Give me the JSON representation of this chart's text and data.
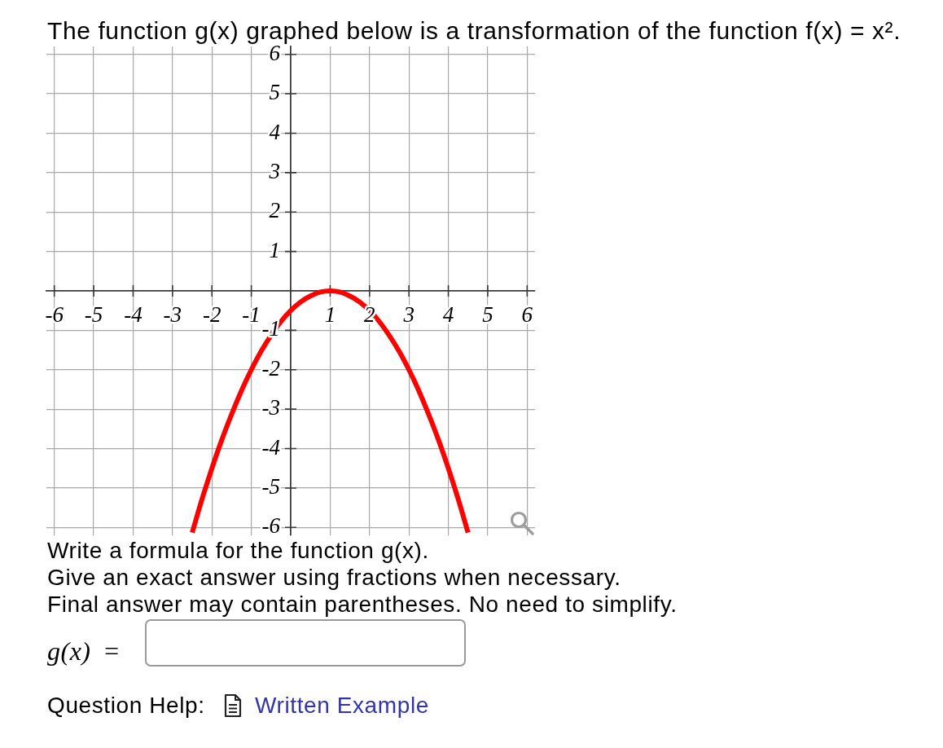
{
  "chart_data": {
    "type": "line",
    "title": "The function g(x) graphed below is a transformation of the function f(x) = x².",
    "x": [
      -2.5,
      -2.25,
      -2,
      -1.75,
      -1.5,
      -1.25,
      -1,
      -0.75,
      -0.5,
      -0.25,
      0,
      0.25,
      0.5,
      0.75,
      1,
      1.25,
      1.5,
      1.75,
      2,
      2.25,
      2.5,
      2.75,
      3,
      3.25,
      3.5,
      3.75,
      4,
      4.25,
      4.5
    ],
    "series": [
      {
        "color": "#ff0000",
        "values": [
          -6.13,
          -5.28,
          -4.5,
          -3.78,
          -3.13,
          -2.53,
          -2,
          -1.53,
          -1.13,
          -0.78,
          -0.5,
          -0.28,
          -0.13,
          -0.03,
          0,
          -0.03,
          -0.13,
          -0.28,
          -0.5,
          -0.78,
          -1.13,
          -1.53,
          -2,
          -2.53,
          -3.13,
          -3.78,
          -4.5,
          -5.28,
          -6.13
        ]
      }
    ],
    "xlim": [
      -6.2,
      6.2
    ],
    "ylim": [
      -6.2,
      6.2
    ],
    "xticks": [
      -6,
      -5,
      -4,
      -3,
      -2,
      -1,
      1,
      2,
      3,
      4,
      5,
      6
    ],
    "yticks": [
      -6,
      -5,
      -4,
      -3,
      -2,
      -1,
      1,
      2,
      3,
      4,
      5,
      6
    ],
    "grid": true,
    "legend": false,
    "marker": "none",
    "annotations": [
      "Write a formula for the function g(x).",
      "Give an exact answer using fractions when necessary.",
      "Final answer may contain parentheses. No need to simplify.",
      "g(x) =",
      "Question Help:",
      "Written Example"
    ]
  }
}
